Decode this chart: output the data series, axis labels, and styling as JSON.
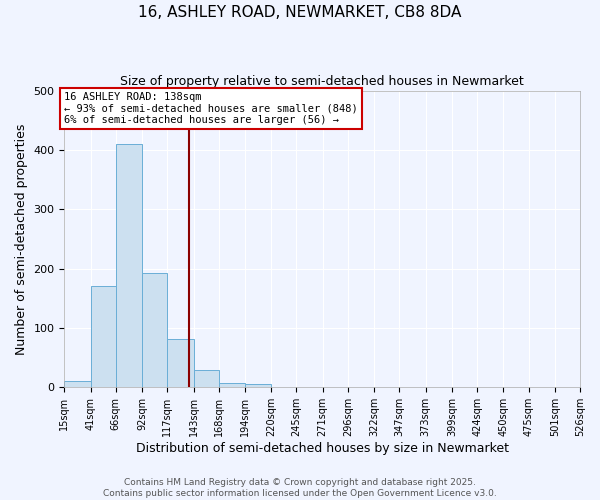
{
  "title": "16, ASHLEY ROAD, NEWMARKET, CB8 8DA",
  "subtitle": "Size of property relative to semi-detached houses in Newmarket",
  "xlabel": "Distribution of semi-detached houses by size in Newmarket",
  "ylabel": "Number of semi-detached properties",
  "bar_edges": [
    15,
    41,
    66,
    92,
    117,
    143,
    168,
    194,
    220,
    245,
    271,
    296,
    322,
    347,
    373,
    399,
    424,
    450,
    475,
    501,
    526
  ],
  "bar_heights": [
    10,
    170,
    410,
    192,
    82,
    30,
    8,
    5,
    0,
    0,
    0,
    0,
    0,
    0,
    0,
    0,
    0,
    0,
    0,
    0
  ],
  "bar_color": "#cce0f0",
  "bar_edgecolor": "#6aaed6",
  "vline_x": 138,
  "vline_color": "#8b0000",
  "annotation_title": "16 ASHLEY ROAD: 138sqm",
  "annotation_line1": "← 93% of semi-detached houses are smaller (848)",
  "annotation_line2": "6% of semi-detached houses are larger (56) →",
  "annotation_box_edgecolor": "#cc0000",
  "annotation_box_facecolor": "#ffffff",
  "ylim": [
    0,
    500
  ],
  "xlim": [
    15,
    526
  ],
  "tick_labels": [
    "15sqm",
    "41sqm",
    "66sqm",
    "92sqm",
    "117sqm",
    "143sqm",
    "168sqm",
    "194sqm",
    "220sqm",
    "245sqm",
    "271sqm",
    "296sqm",
    "322sqm",
    "347sqm",
    "373sqm",
    "399sqm",
    "424sqm",
    "450sqm",
    "475sqm",
    "501sqm",
    "526sqm"
  ],
  "tick_positions": [
    15,
    41,
    66,
    92,
    117,
    143,
    168,
    194,
    220,
    245,
    271,
    296,
    322,
    347,
    373,
    399,
    424,
    450,
    475,
    501,
    526
  ],
  "footer1": "Contains HM Land Registry data © Crown copyright and database right 2025.",
  "footer2": "Contains public sector information licensed under the Open Government Licence v3.0.",
  "bg_color": "#f0f4ff",
  "grid_color": "#ffffff",
  "title_fontsize": 11,
  "subtitle_fontsize": 9,
  "axis_label_fontsize": 9,
  "tick_fontsize": 7,
  "annotation_fontsize": 7.5,
  "footer_fontsize": 6.5
}
